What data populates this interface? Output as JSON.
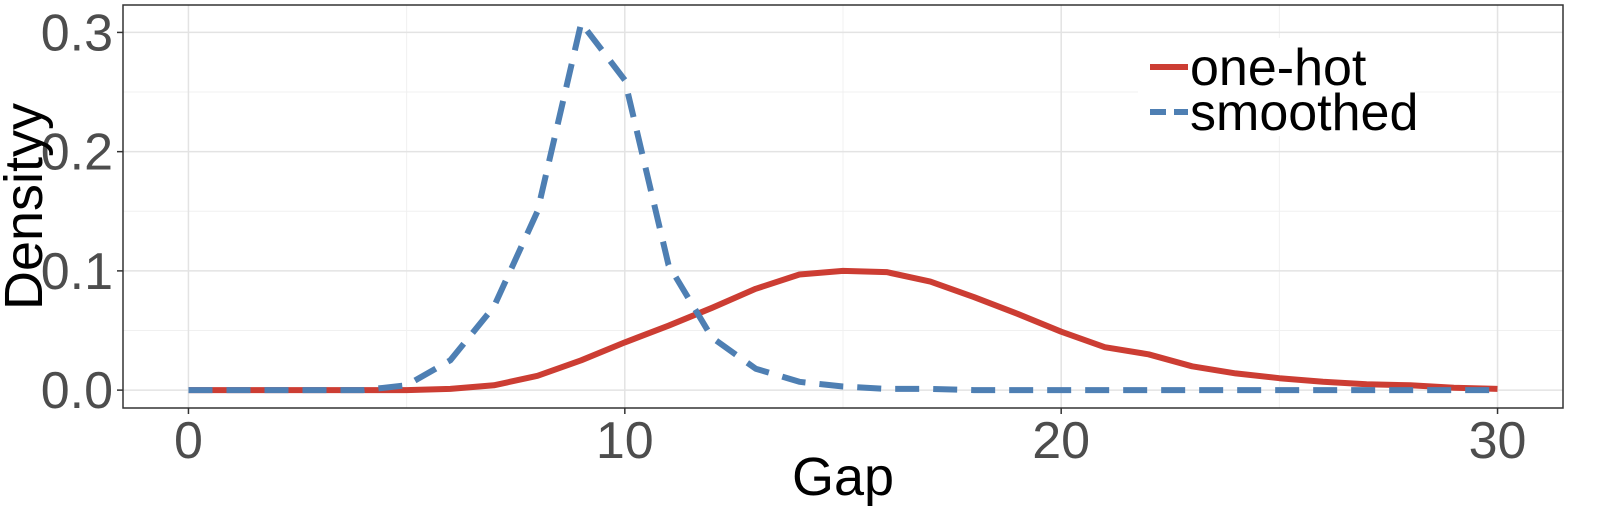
{
  "chart_data": {
    "type": "line",
    "xlabel": "Gap",
    "ylabel": "Densityy",
    "xlim": [
      -1.5,
      31.5
    ],
    "ylim": [
      -0.015,
      0.323
    ],
    "x_ticks": [
      0,
      10,
      20,
      30
    ],
    "y_ticks": [
      0.0,
      0.1,
      0.2,
      0.3
    ],
    "x_tick_labels": [
      "0",
      "10",
      "20",
      "30"
    ],
    "y_tick_labels": [
      "0.0",
      "0.1",
      "0.2",
      "0.3"
    ],
    "x_minor": [
      5,
      15,
      25
    ],
    "y_minor": [
      0.05,
      0.15,
      0.25
    ],
    "grid": true,
    "legend_position": "top-right",
    "x": [
      0,
      1,
      2,
      3,
      4,
      5,
      6,
      7,
      8,
      9,
      10,
      11,
      12,
      13,
      14,
      15,
      16,
      17,
      18,
      19,
      20,
      21,
      22,
      23,
      24,
      25,
      26,
      27,
      28,
      29,
      30
    ],
    "series": [
      {
        "name": "one-hot",
        "color": "#cc3d33",
        "dash": "solid",
        "values": [
          0,
          0,
          0,
          0,
          0,
          0,
          0.001,
          0.004,
          0.012,
          0.025,
          0.04,
          0.054,
          0.069,
          0.085,
          0.097,
          0.1,
          0.099,
          0.091,
          0.078,
          0.064,
          0.049,
          0.036,
          0.03,
          0.02,
          0.014,
          0.01,
          0.007,
          0.005,
          0.004,
          0.002,
          0.001
        ]
      },
      {
        "name": "smoothed",
        "color": "#4e7fb3",
        "dash": "dashed",
        "values": [
          0,
          0,
          0,
          0,
          0,
          0.004,
          0.025,
          0.07,
          0.15,
          0.308,
          0.26,
          0.105,
          0.044,
          0.018,
          0.007,
          0.003,
          0.001,
          0.001,
          0,
          0,
          0,
          0,
          0,
          0,
          0,
          0,
          0,
          0,
          0,
          0,
          0
        ]
      }
    ]
  }
}
